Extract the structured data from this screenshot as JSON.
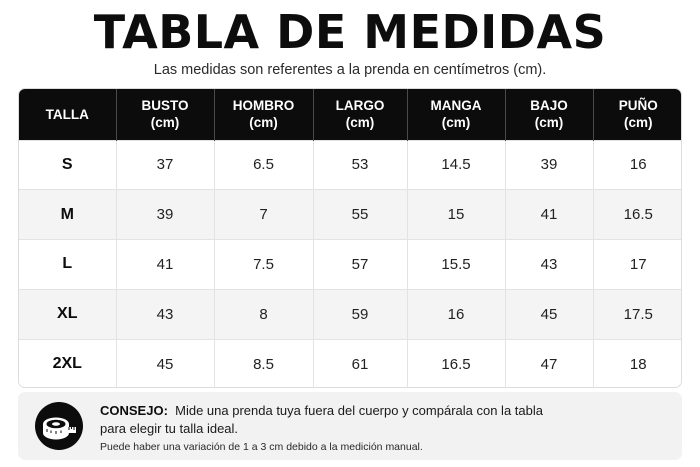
{
  "header": {
    "title": "TABLA DE MEDIDAS",
    "subtitle": "Las medidas son referentes a la prenda en centímetros (cm)."
  },
  "table": {
    "columns": [
      {
        "label": "TALLA",
        "unit": ""
      },
      {
        "label": "BUSTO",
        "unit": "(cm)"
      },
      {
        "label": "HOMBRO",
        "unit": "(cm)"
      },
      {
        "label": "LARGO",
        "unit": "(cm)"
      },
      {
        "label": "MANGA",
        "unit": "(cm)"
      },
      {
        "label": "BAJO",
        "unit": "(cm)"
      },
      {
        "label": "PUÑO",
        "unit": "(cm)"
      }
    ],
    "rows": [
      [
        "S",
        "37",
        "6.5",
        "53",
        "14.5",
        "39",
        "16"
      ],
      [
        "M",
        "39",
        "7",
        "55",
        "15",
        "41",
        "16.5"
      ],
      [
        "L",
        "41",
        "7.5",
        "57",
        "15.5",
        "43",
        "17"
      ],
      [
        "XL",
        "43",
        "8",
        "59",
        "16",
        "45",
        "17.5"
      ],
      [
        "2XL",
        "45",
        "8.5",
        "61",
        "16.5",
        "47",
        "18"
      ]
    ]
  },
  "tip": {
    "icon": "measuring-tape-icon",
    "label": "CONSEJO:",
    "text_line1": "Mide una prenda tuya fuera del cuerpo y compárala con la tabla",
    "text_line2": "para elegir tu talla ideal.",
    "note": "Puede haber una variación de 1 a 3 cm debido a la medición manual."
  },
  "colors": {
    "header_bg": "#0c0c0c",
    "stripe_bg": "#f4f4f4",
    "tip_bg": "#f2f2f2"
  }
}
